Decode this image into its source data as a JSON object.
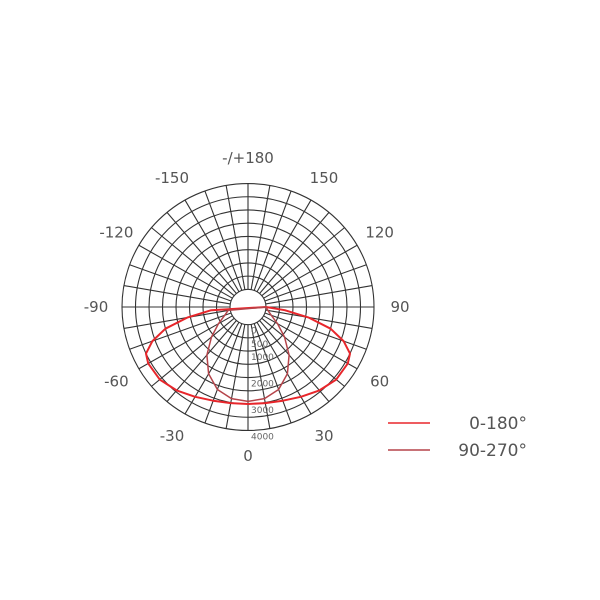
{
  "chart_data": {
    "type": "polar-line",
    "angle_labels": [
      {
        "angle": 0,
        "label": "0"
      },
      {
        "angle": 30,
        "label": "30"
      },
      {
        "angle": 60,
        "label": "60"
      },
      {
        "angle": 90,
        "label": "90"
      },
      {
        "angle": 120,
        "label": "120"
      },
      {
        "angle": 150,
        "label": "150"
      },
      {
        "angle": 180,
        "label": "-/+180"
      },
      {
        "angle": -150,
        "label": "-150"
      },
      {
        "angle": -120,
        "label": "-120"
      },
      {
        "angle": -90,
        "label": "-90"
      },
      {
        "angle": -60,
        "label": "-60"
      },
      {
        "angle": -30,
        "label": "-30"
      }
    ],
    "radial_ticks": [
      {
        "value": 0,
        "label": "0"
      },
      {
        "value": 500,
        "label": "500"
      },
      {
        "value": 1000,
        "label": "1000"
      },
      {
        "value": 2000,
        "label": "2000"
      },
      {
        "value": 3000,
        "label": "3000"
      },
      {
        "value": 4000,
        "label": "4000"
      }
    ],
    "rings": [
      0,
      500,
      1000,
      1500,
      2000,
      2500,
      3000,
      3500,
      4000
    ],
    "spoke_step_deg": 10,
    "rlim": [
      0,
      4000
    ],
    "grid": true,
    "legend_position": "bottom-right",
    "series": [
      {
        "name": "0-180°",
        "color": "#e8262b",
        "angles": [
          0,
          10,
          20,
          30,
          40,
          50,
          60,
          65,
          70,
          75,
          80,
          85,
          90
        ],
        "values": [
          3000,
          3020,
          3100,
          3250,
          3450,
          3600,
          3600,
          3500,
          3100,
          2500,
          1600,
          700,
          0
        ]
      },
      {
        "name": "90-270°",
        "color": "#b5444a",
        "angles": [
          0,
          10,
          20,
          30,
          40,
          50,
          60,
          70,
          80,
          90
        ],
        "values": [
          2900,
          2850,
          2650,
          2250,
          1700,
          1100,
          600,
          250,
          80,
          0
        ]
      }
    ]
  }
}
